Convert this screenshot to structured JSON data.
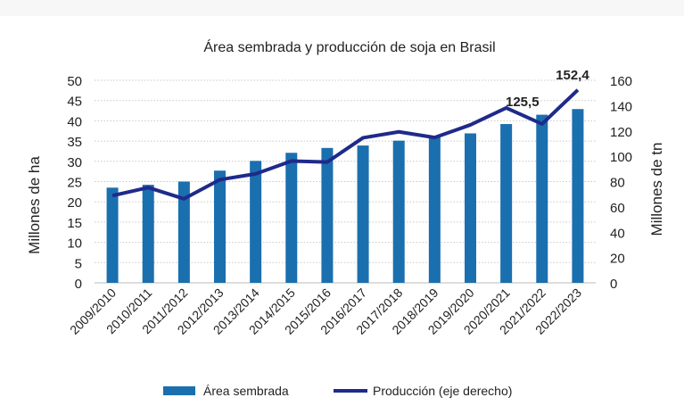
{
  "chart_data": {
    "type": "bar+line",
    "title": "Área sembrada y producción de soja en Brasil",
    "ylabel": "Millones de ha",
    "y2label": "Millones de tn",
    "ylim": [
      0,
      50
    ],
    "y2lim": [
      0,
      160
    ],
    "yticks": [
      "0",
      "5",
      "10",
      "15",
      "20",
      "25",
      "30",
      "35",
      "40",
      "45",
      "50"
    ],
    "y2ticks": [
      "0",
      "20",
      "40",
      "60",
      "80",
      "100",
      "120",
      "140",
      "160"
    ],
    "grid": true,
    "legend_position": "bottom",
    "categories": [
      "2009/2010",
      "2010/2011",
      "2011/2012",
      "2012/2013",
      "2013/2014",
      "2014/2015",
      "2015/2016",
      "2016/2017",
      "2017/2018",
      "2018/2019",
      "2019/2020",
      "2020/2021",
      "2021/2022",
      "2022/2023"
    ],
    "series": [
      {
        "name": "Área sembrada",
        "type": "bar",
        "axis": "left",
        "color": "#1a6faf",
        "values": [
          23.5,
          24.2,
          25.0,
          27.7,
          30.1,
          32.1,
          33.3,
          33.9,
          35.1,
          36.0,
          36.9,
          39.2,
          41.5,
          42.9
        ]
      },
      {
        "name": "Producción (eje derecho)",
        "type": "line",
        "axis": "right",
        "color": "#1f2a8a",
        "values": [
          68.9,
          75.3,
          66.4,
          81.5,
          86.1,
          96.2,
          95.4,
          114.6,
          119.3,
          114.8,
          124.8,
          138.2,
          125.5,
          152.4
        ]
      }
    ],
    "annotations": [
      {
        "index": 12,
        "text": "125,5"
      },
      {
        "index": 13,
        "text": "152,4"
      }
    ]
  }
}
